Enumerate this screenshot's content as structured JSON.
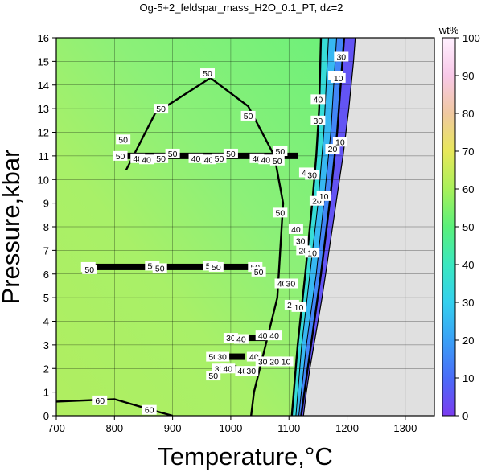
{
  "chart_data": {
    "type": "heatmap",
    "title": "Og-5+2_feldspar_mass_H2O_0.1_PT, dz=2",
    "xlabel": "Temperature,°C",
    "ylabel": "Pressure,kbar",
    "xlim": [
      700,
      1350
    ],
    "ylim": [
      0,
      16
    ],
    "x_ticks": [
      700,
      800,
      900,
      1000,
      1100,
      1200,
      1300
    ],
    "y_ticks": [
      0,
      1,
      2,
      3,
      4,
      5,
      6,
      7,
      8,
      9,
      10,
      11,
      12,
      13,
      14,
      15,
      16
    ],
    "grid": true,
    "colorbar": {
      "label": "wt%",
      "range": [
        0,
        100
      ],
      "ticks": [
        0,
        10,
        20,
        30,
        40,
        50,
        60,
        70,
        80,
        90,
        100
      ],
      "colors": [
        "#7b3cf0",
        "#4a6cf8",
        "#3aa0f6",
        "#34d0ee",
        "#3ae8c0",
        "#5af07a",
        "#a8f05a",
        "#e8e85a",
        "#f0c8a0",
        "#f8c8e8",
        "#fff0ff"
      ]
    },
    "no_data_color": "#e0e0e0",
    "boundary_T_at_P": [
      [
        0,
        1125
      ],
      [
        1,
        1130
      ],
      [
        2,
        1136
      ],
      [
        3,
        1143
      ],
      [
        4,
        1150
      ],
      [
        5,
        1157
      ],
      [
        6,
        1163
      ],
      [
        7,
        1169
      ],
      [
        8,
        1175
      ],
      [
        9,
        1181
      ],
      [
        10,
        1187
      ],
      [
        11,
        1193
      ],
      [
        12,
        1198
      ],
      [
        13,
        1203
      ],
      [
        14,
        1207
      ],
      [
        15,
        1211
      ],
      [
        16,
        1214
      ]
    ],
    "contours": [
      {
        "level": 50,
        "bold": true,
        "points": [
          [
            820,
            10.4
          ],
          [
            870,
            12.8
          ],
          [
            965,
            14.3
          ],
          [
            1030,
            13.1
          ],
          [
            1075,
            11.0
          ],
          [
            1090,
            9.0
          ],
          [
            1085,
            7.0
          ],
          [
            1080,
            5.0
          ],
          [
            1060,
            3.0
          ],
          [
            1040,
            1.0
          ],
          [
            1035,
            0.0
          ]
        ]
      },
      {
        "level": 60,
        "bold": true,
        "points": [
          [
            700,
            0.6
          ],
          [
            800,
            0.7
          ],
          [
            870,
            0.2
          ],
          [
            900,
            0.0
          ]
        ]
      },
      {
        "level": 40,
        "bold": true,
        "points": [
          [
            1105,
            0.0
          ],
          [
            1115,
            3.0
          ],
          [
            1128,
            6.0
          ],
          [
            1140,
            9.0
          ],
          [
            1147,
            11.0
          ],
          [
            1152,
            13.0
          ],
          [
            1155,
            16.0
          ]
        ]
      },
      {
        "level": 30,
        "bold": false,
        "points": [
          [
            1112,
            0.0
          ],
          [
            1122,
            3.0
          ],
          [
            1136,
            6.0
          ],
          [
            1150,
            9.0
          ],
          [
            1160,
            12.0
          ],
          [
            1168,
            16.0
          ]
        ]
      },
      {
        "level": 20,
        "bold": false,
        "points": [
          [
            1117,
            0.0
          ],
          [
            1130,
            3.0
          ],
          [
            1147,
            6.0
          ],
          [
            1160,
            9.0
          ],
          [
            1172,
            12.0
          ],
          [
            1182,
            16.0
          ]
        ]
      },
      {
        "level": 10,
        "bold": true,
        "points": [
          [
            1121,
            0.0
          ],
          [
            1138,
            3.0
          ],
          [
            1155,
            6.0
          ],
          [
            1170,
            9.0
          ],
          [
            1183,
            12.0
          ],
          [
            1195,
            16.0
          ]
        ]
      }
    ],
    "bands": [
      {
        "P": 11.0,
        "T_start": 808,
        "T_end": 1115
      },
      {
        "P": 6.3,
        "T_start": 755,
        "T_end": 1050
      },
      {
        "P": 3.3,
        "T_start": 1015,
        "T_end": 1060
      },
      {
        "P": 2.5,
        "T_start": 975,
        "T_end": 1025
      },
      {
        "P": 2.0,
        "T_start": 975,
        "T_end": 1010
      }
    ],
    "contour_labels": [
      {
        "text": "50",
        "T": 810,
        "P": 11.0
      },
      {
        "text": "40",
        "T": 840,
        "P": 10.9
      },
      {
        "text": "40",
        "T": 855,
        "P": 10.85
      },
      {
        "text": "50",
        "T": 880,
        "P": 10.9
      },
      {
        "text": "50",
        "T": 900,
        "P": 11.1
      },
      {
        "text": "40",
        "T": 940,
        "P": 10.9
      },
      {
        "text": "40",
        "T": 962,
        "P": 10.85
      },
      {
        "text": "50",
        "T": 980,
        "P": 10.9
      },
      {
        "text": "50",
        "T": 1000,
        "P": 11.1
      },
      {
        "text": "40",
        "T": 1045,
        "P": 10.9
      },
      {
        "text": "40",
        "T": 1060,
        "P": 10.85
      },
      {
        "text": "50",
        "T": 1080,
        "P": 10.8
      },
      {
        "text": "50",
        "T": 960,
        "P": 14.5
      },
      {
        "text": "50",
        "T": 880,
        "P": 13.0
      },
      {
        "text": "50",
        "T": 815,
        "P": 11.7
      },
      {
        "text": "50",
        "T": 1030,
        "P": 12.7
      },
      {
        "text": "50",
        "T": 1085,
        "P": 11.2
      },
      {
        "text": "50",
        "T": 1085,
        "P": 8.6
      },
      {
        "text": "50",
        "T": 755,
        "P": 6.3
      },
      {
        "text": "50",
        "T": 757,
        "P": 6.2
      },
      {
        "text": "50",
        "T": 865,
        "P": 6.35
      },
      {
        "text": "50",
        "T": 878,
        "P": 6.25
      },
      {
        "text": "50",
        "T": 965,
        "P": 6.35
      },
      {
        "text": "50",
        "T": 975,
        "P": 6.3
      },
      {
        "text": "50",
        "T": 1042,
        "P": 6.3
      },
      {
        "text": "50",
        "T": 1048,
        "P": 6.1
      },
      {
        "text": "30",
        "T": 1000,
        "P": 3.3
      },
      {
        "text": "40",
        "T": 1018,
        "P": 3.25
      },
      {
        "text": "40",
        "T": 1055,
        "P": 3.4
      },
      {
        "text": "40",
        "T": 1075,
        "P": 3.4
      },
      {
        "text": "50",
        "T": 970,
        "P": 2.5
      },
      {
        "text": "30",
        "T": 985,
        "P": 2.5
      },
      {
        "text": "40",
        "T": 1040,
        "P": 2.5
      },
      {
        "text": "30",
        "T": 1055,
        "P": 2.3
      },
      {
        "text": "30",
        "T": 980,
        "P": 2.0
      },
      {
        "text": "40",
        "T": 995,
        "P": 2.0
      },
      {
        "text": "40",
        "T": 1020,
        "P": 1.9
      },
      {
        "text": "30",
        "T": 1035,
        "P": 1.9
      },
      {
        "text": "50",
        "T": 970,
        "P": 1.7
      },
      {
        "text": "60",
        "T": 775,
        "P": 0.65
      },
      {
        "text": "60",
        "T": 860,
        "P": 0.25
      },
      {
        "text": "30",
        "T": 1190,
        "P": 15.2
      },
      {
        "text": "20",
        "T": 1180,
        "P": 14.4
      },
      {
        "text": "10",
        "T": 1185,
        "P": 14.3
      },
      {
        "text": "40",
        "T": 1150,
        "P": 13.4
      },
      {
        "text": "30",
        "T": 1150,
        "P": 12.5
      },
      {
        "text": "20",
        "T": 1175,
        "P": 11.3
      },
      {
        "text": "10",
        "T": 1188,
        "P": 11.6
      },
      {
        "text": "40",
        "T": 1130,
        "P": 10.3
      },
      {
        "text": "30",
        "T": 1140,
        "P": 10.2
      },
      {
        "text": "20",
        "T": 1148,
        "P": 9.1
      },
      {
        "text": "10",
        "T": 1160,
        "P": 9.3
      },
      {
        "text": "40",
        "T": 1112,
        "P": 7.9
      },
      {
        "text": "30",
        "T": 1120,
        "P": 7.4
      },
      {
        "text": "20",
        "T": 1125,
        "P": 7.0
      },
      {
        "text": "10",
        "T": 1140,
        "P": 6.9
      },
      {
        "text": "40",
        "T": 1088,
        "P": 5.6
      },
      {
        "text": "30",
        "T": 1103,
        "P": 5.6
      },
      {
        "text": "20",
        "T": 1105,
        "P": 4.7
      },
      {
        "text": "10",
        "T": 1117,
        "P": 4.6
      },
      {
        "text": "20",
        "T": 1075,
        "P": 2.3
      },
      {
        "text": "10",
        "T": 1095,
        "P": 2.3
      }
    ]
  }
}
